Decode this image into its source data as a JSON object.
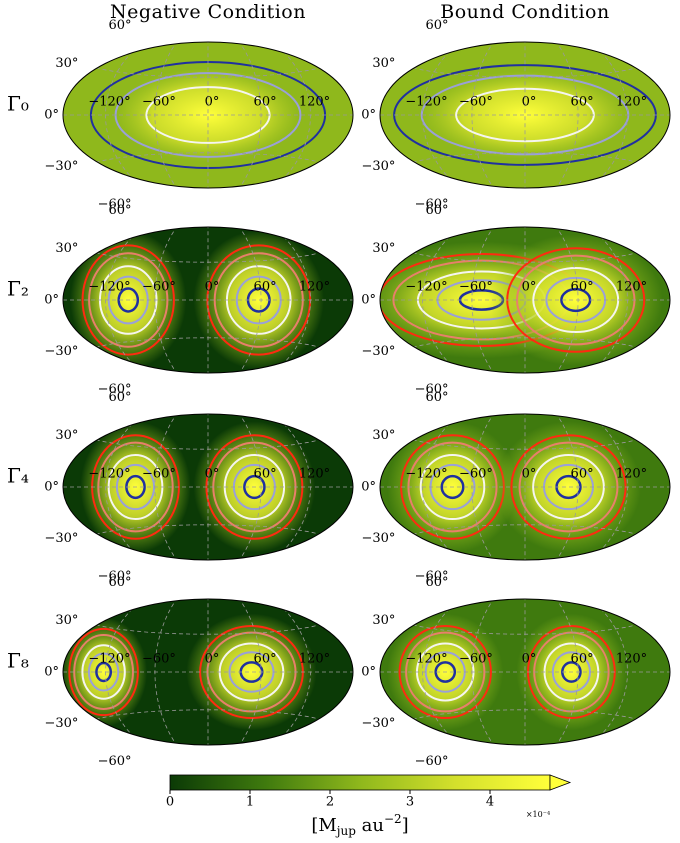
{
  "chart_data": {
    "type": "map",
    "column_titles": [
      "Negative Condition",
      "Bound Condition"
    ],
    "row_labels": [
      "Γ₀",
      "Γ₂",
      "Γ₄",
      "Γ₈"
    ],
    "lon_labels": [
      "−120°",
      "−60°",
      "0°",
      "60°",
      "120°"
    ],
    "lat_labels": [
      "60°",
      "30°",
      "0°",
      "−30°",
      "−60°"
    ],
    "colormap": [
      "#0b3a06",
      "#3f7a0e",
      "#8fb81c",
      "#d3e02c",
      "#ffff3a"
    ],
    "colorbar": {
      "lim": [
        0,
        4.75
      ],
      "ticks": [
        0,
        1,
        2,
        3,
        4
      ],
      "scale_label": "×10⁻⁴",
      "label": {
        "open": "[M",
        "sub": "jup",
        "mid": " au",
        "sup": "−2",
        "close": "]"
      }
    }
  }
}
